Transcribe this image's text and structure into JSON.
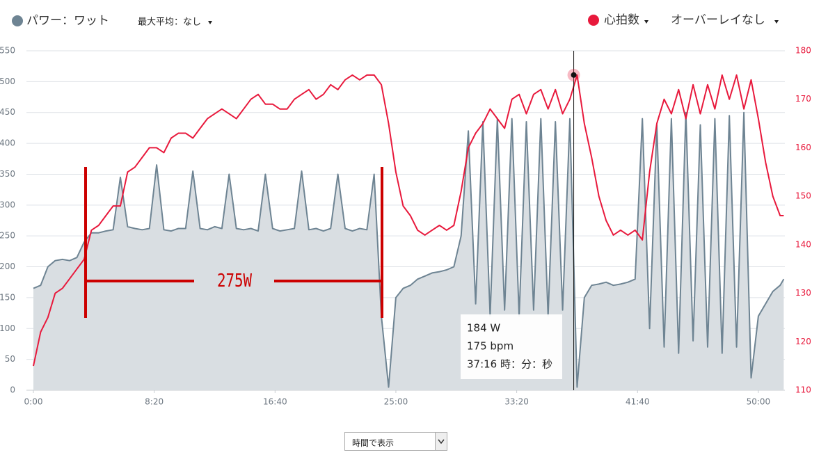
{
  "chart_data": {
    "type": "line",
    "x": [
      0,
      30,
      60,
      90,
      120,
      150,
      180,
      210,
      240,
      270,
      300,
      330,
      360,
      390,
      420,
      450,
      480,
      510,
      540,
      570,
      600,
      630,
      660,
      690,
      720,
      750,
      780,
      810,
      840,
      870,
      900,
      930,
      960,
      990,
      1020,
      1050,
      1080,
      1110,
      1140,
      1170,
      1200,
      1230,
      1260,
      1290,
      1320,
      1350,
      1380,
      1410,
      1440,
      1470,
      1500,
      1530,
      1560,
      1590,
      1620,
      1650,
      1680,
      1710,
      1740,
      1770,
      1800,
      1830,
      1860,
      1890,
      1920,
      1950,
      1980,
      2010,
      2040,
      2070,
      2100,
      2130,
      2160,
      2190,
      2220,
      2250,
      2280,
      2310,
      2340,
      2370,
      2400,
      2430,
      2460,
      2490,
      2520,
      2550,
      2580,
      2610,
      2640,
      2670,
      2700,
      2730,
      2760,
      2790,
      2820,
      2850,
      2880,
      2910,
      2940,
      2970,
      3000,
      3030,
      3060,
      3090,
      3105
    ],
    "xlim": [
      0,
      3107
    ],
    "xticks": [
      {
        "value": 0,
        "label": "0:00"
      },
      {
        "value": 500,
        "label": "8:20"
      },
      {
        "value": 1000,
        "label": "16:40"
      },
      {
        "value": 1500,
        "label": "25:00"
      },
      {
        "value": 2000,
        "label": "33:20"
      },
      {
        "value": 2500,
        "label": "41:40"
      },
      {
        "value": 3000,
        "label": "50:00"
      }
    ],
    "ylim": [
      0,
      550
    ],
    "yticks": [
      0,
      50,
      100,
      150,
      200,
      250,
      300,
      350,
      400,
      450,
      500,
      550
    ],
    "y2lim": [
      110,
      180
    ],
    "y2ticks": [
      110,
      120,
      130,
      140,
      150,
      160,
      170,
      180
    ],
    "grid": true,
    "series": [
      {
        "name": "パワー：ワット",
        "color": "#6e8493",
        "fill": "#d9dee2",
        "area": true,
        "values": [
          165,
          170,
          200,
          210,
          212,
          210,
          215,
          240,
          255,
          255,
          258,
          260,
          345,
          265,
          262,
          260,
          262,
          365,
          260,
          258,
          262,
          262,
          355,
          262,
          260,
          265,
          262,
          350,
          262,
          260,
          262,
          258,
          350,
          262,
          258,
          260,
          262,
          355,
          260,
          262,
          258,
          262,
          350,
          262,
          258,
          262,
          260,
          350,
          120,
          5,
          150,
          165,
          170,
          180,
          185,
          190,
          192,
          195,
          200,
          250,
          420,
          140,
          435,
          120,
          440,
          130,
          440,
          120,
          435,
          130,
          440,
          120,
          435,
          130,
          440,
          5,
          150,
          170,
          172,
          175,
          170,
          172,
          175,
          180,
          440,
          100,
          430,
          70,
          440,
          60,
          450,
          80,
          430,
          70,
          440,
          60,
          445,
          70,
          450,
          20,
          120,
          140,
          160,
          170,
          180
        ]
      },
      {
        "name": "心拍数",
        "color": "#e8193c",
        "axis": "y2",
        "values": [
          115,
          122,
          125,
          130,
          131,
          133,
          135,
          137,
          143,
          144,
          146,
          148,
          148,
          155,
          156,
          158,
          160,
          160,
          159,
          162,
          163,
          163,
          162,
          164,
          166,
          167,
          168,
          167,
          166,
          168,
          170,
          171,
          169,
          169,
          168,
          168,
          170,
          171,
          172,
          170,
          171,
          173,
          172,
          174,
          175,
          174,
          175,
          175,
          173,
          165,
          155,
          148,
          146,
          143,
          142,
          143,
          144,
          143,
          144,
          151,
          160,
          163,
          165,
          168,
          166,
          164,
          170,
          171,
          167,
          171,
          172,
          168,
          172,
          167,
          170,
          175,
          165,
          158,
          150,
          145,
          142,
          143,
          142,
          143,
          141,
          155,
          165,
          170,
          167,
          172,
          166,
          173,
          167,
          173,
          168,
          175,
          170,
          175,
          168,
          174,
          166,
          157,
          150,
          146,
          146
        ]
      }
    ],
    "max_average": "最大平均：なし",
    "overlay": "オーバーレイなし",
    "annotation": "275W",
    "cursor": {
      "x": 2236,
      "hr": 175
    },
    "tooltip": [
      "184 W",
      "175 bpm",
      "37:16 時：分：秒"
    ]
  },
  "controls": {
    "view_select": "時間で表示"
  }
}
